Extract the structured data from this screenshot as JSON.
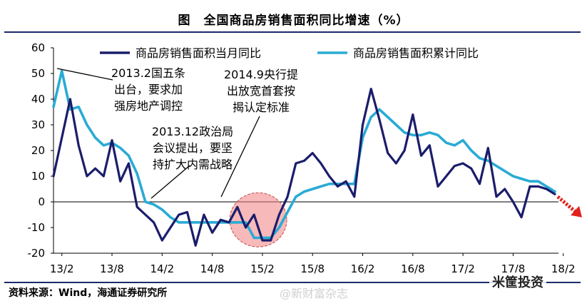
{
  "title": "图　全国商品房销售面积同比增速（%）",
  "source": "资料来源：Wind，海通证券研究所",
  "watermark_weibo": "@新财富杂志",
  "watermark_brand": "米筐投资",
  "colors": {
    "monthly": "#1b1d6b",
    "cumulative": "#29abd4",
    "highlight_fill": "#f08080",
    "arrow": "#e0211c"
  },
  "chart_data": {
    "type": "line",
    "title": "全国商品房销售面积同比增速（%）",
    "ylim": [
      -20,
      60
    ],
    "yticks": [
      "60",
      "50",
      "40",
      "30",
      "20",
      "10",
      "0",
      "-10",
      "-20"
    ],
    "xticks": [
      "13/2",
      "13/8",
      "14/2",
      "14/8",
      "15/2",
      "15/8",
      "16/2",
      "16/8",
      "17/2",
      "17/8",
      "18/2"
    ],
    "x_start": "2013-01",
    "series": [
      {
        "name": "商品房销售面积当月同比",
        "values": [
          10,
          25,
          40,
          22,
          10,
          13,
          10,
          24,
          8,
          15,
          -2,
          -5,
          -8,
          -15,
          -10,
          -5,
          -4,
          -17,
          -5,
          -12,
          -7,
          -8,
          -2,
          -10,
          -5,
          -15,
          -15,
          -5,
          2,
          15,
          16,
          19,
          15,
          10,
          6,
          8,
          2,
          30,
          44,
          32,
          19,
          15,
          20,
          34,
          18,
          22,
          6,
          10,
          14,
          15,
          13,
          7,
          21,
          2,
          5,
          0,
          -6,
          6,
          6,
          5,
          3
        ]
      },
      {
        "name": "商品房销售面积累计同比",
        "values": [
          37,
          51,
          36,
          37,
          30,
          25,
          22,
          23,
          21,
          18,
          11,
          0,
          -1,
          -3,
          -6,
          -8,
          -8,
          -8,
          -8,
          -8,
          -8,
          -8,
          -8,
          -8,
          -14,
          -14,
          -14,
          -10,
          -4,
          2,
          4,
          5,
          6,
          7,
          7,
          7,
          7,
          25,
          33,
          36,
          33,
          30,
          27,
          26,
          26,
          27,
          26,
          23,
          22,
          24,
          20,
          17,
          16,
          14,
          12,
          10,
          9,
          8,
          8,
          6,
          4
        ]
      }
    ],
    "annotations": [
      {
        "lines": [
          "2013.2国五条",
          "出台，要求加",
          "强房地产调控"
        ]
      },
      {
        "lines": [
          "2014.9央行提",
          "出放宽首套按",
          "揭认定标准"
        ]
      },
      {
        "lines": [
          "2013.12政治局",
          "会议提出，要坚",
          "持扩大内需战略"
        ]
      }
    ]
  }
}
